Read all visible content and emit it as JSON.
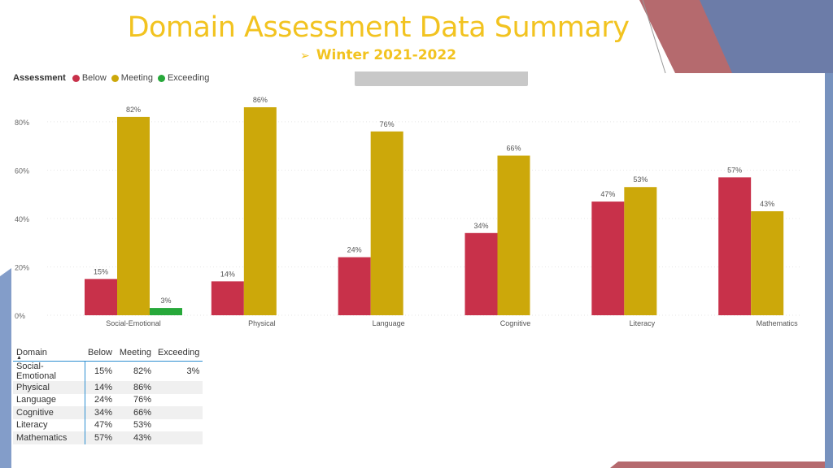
{
  "slide": {
    "title": "Domain Assessment Data Summary",
    "subtitle": "Winter 2021-2022",
    "subtitle_bullet": "➢"
  },
  "colors": {
    "below": "#c8314a",
    "meeting": "#cca80a",
    "exceeding": "#27a83a",
    "title": "#f2c320",
    "deco_red": "#b56a6e",
    "deco_blue": "#5f7fb3"
  },
  "legend": {
    "title": "Assessment",
    "items": [
      {
        "label": "Below",
        "color": "#c8314a"
      },
      {
        "label": "Meeting",
        "color": "#cca80a"
      },
      {
        "label": "Exceeding",
        "color": "#27a83a"
      }
    ]
  },
  "chart_data": {
    "type": "bar",
    "title": "",
    "xlabel": "",
    "ylabel": "",
    "categories": [
      "Social-Emotional",
      "Physical",
      "Language",
      "Cognitive",
      "Literacy",
      "Mathematics"
    ],
    "series": [
      {
        "name": "Below",
        "color": "#c8314a",
        "values": [
          15,
          14,
          24,
          34,
          47,
          57
        ]
      },
      {
        "name": "Meeting",
        "color": "#cca80a",
        "values": [
          82,
          86,
          76,
          66,
          53,
          43
        ]
      },
      {
        "name": "Exceeding",
        "color": "#27a83a",
        "values": [
          3,
          null,
          null,
          null,
          null,
          null
        ]
      }
    ],
    "ylim": [
      0,
      86
    ],
    "yticks": [
      0,
      20,
      40,
      60,
      80
    ],
    "ytick_labels": [
      "0%",
      "20%",
      "40%",
      "60%",
      "80%"
    ],
    "value_suffix": "%",
    "grid": true,
    "legend_position": "top-left"
  },
  "table": {
    "columns": [
      "Domain",
      "Below",
      "Meeting",
      "Exceeding"
    ],
    "sort_indicator": "▲",
    "rows": [
      [
        "Social-Emotional",
        "15%",
        "82%",
        "3%"
      ],
      [
        "Physical",
        "14%",
        "86%",
        ""
      ],
      [
        "Language",
        "24%",
        "76%",
        ""
      ],
      [
        "Cognitive",
        "34%",
        "66%",
        ""
      ],
      [
        "Literacy",
        "47%",
        "53%",
        ""
      ],
      [
        "Mathematics",
        "57%",
        "43%",
        ""
      ]
    ]
  }
}
